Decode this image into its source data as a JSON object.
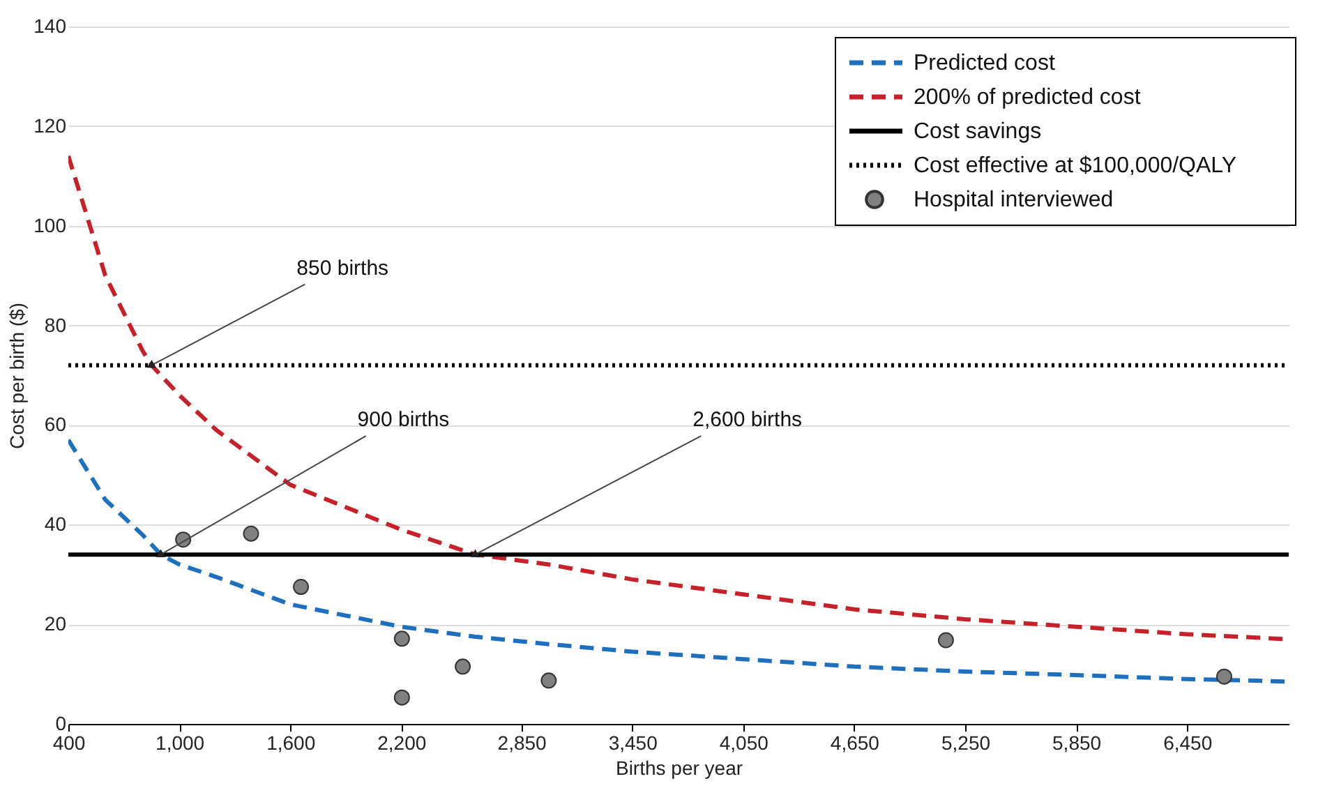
{
  "chart_data": {
    "type": "line",
    "xlabel": "Births per year",
    "ylabel": "Cost per birth ($)",
    "xlim": [
      400,
      7000
    ],
    "ylim": [
      0,
      140
    ],
    "xticks": [
      {
        "value": 400,
        "label": "400"
      },
      {
        "value": 1000,
        "label": "1,000"
      },
      {
        "value": 1600,
        "label": "1,600"
      },
      {
        "value": 2200,
        "label": "2,200"
      },
      {
        "value": 2850,
        "label": "2,850"
      },
      {
        "value": 3450,
        "label": "3,450"
      },
      {
        "value": 4050,
        "label": "4,050"
      },
      {
        "value": 4650,
        "label": "4,650"
      },
      {
        "value": 5250,
        "label": "5,250"
      },
      {
        "value": 5850,
        "label": "5,850"
      },
      {
        "value": 6450,
        "label": "6,450"
      }
    ],
    "yticks": [
      0,
      20,
      40,
      60,
      80,
      100,
      120,
      140
    ],
    "grid": "y",
    "legend": "top right",
    "series": [
      {
        "name": "Predicted cost",
        "color": "#1f6fc0",
        "line_style": "dashed",
        "x": [
          400,
          600,
          800,
          900,
          1000,
          1200,
          1600,
          2200,
          2600,
          3000,
          3450,
          4050,
          4650,
          5250,
          5850,
          6450,
          7000
        ],
        "values": [
          57,
          45,
          38,
          34,
          32,
          29.5,
          24,
          19.5,
          17.5,
          16,
          14.5,
          13,
          11.5,
          10.5,
          9.8,
          9,
          8.5
        ]
      },
      {
        "name": "200% of predicted cost",
        "color": "#c8202a",
        "line_style": "dashed",
        "x": [
          400,
          600,
          800,
          850,
          1000,
          1200,
          1600,
          2200,
          2600,
          3000,
          3450,
          4050,
          4650,
          5250,
          5850,
          6450,
          7000
        ],
        "values": [
          114,
          90,
          75,
          72,
          66,
          59,
          48,
          39,
          34,
          32,
          29,
          26,
          23,
          21,
          19.5,
          18,
          17
        ]
      },
      {
        "name": "Hospital interviewed",
        "type": "scatter",
        "color": "#808080",
        "marker": "circle",
        "x": [
          1021,
          1388,
          1658,
          2204,
          2204,
          2533,
          2998,
          5146,
          6651
        ],
        "values": [
          37,
          38.2,
          27.5,
          17.1,
          5.3,
          11.5,
          8.7,
          16.8,
          9.5
        ]
      }
    ],
    "ref_lines": [
      {
        "axis": "y",
        "value": 34,
        "label": "Cost savings",
        "color": "#000000",
        "line_style": "solid"
      },
      {
        "axis": "y",
        "value": 72,
        "label": "Cost effective at $100,000/QALY",
        "color": "#000000",
        "line_style": "dotted"
      }
    ],
    "annotations": [
      {
        "text": "850 births",
        "x": 850,
        "y": 72
      },
      {
        "text": "900 births",
        "x": 900,
        "y": 34
      },
      {
        "text": "2,600 births",
        "x": 2600,
        "y": 34
      }
    ]
  }
}
